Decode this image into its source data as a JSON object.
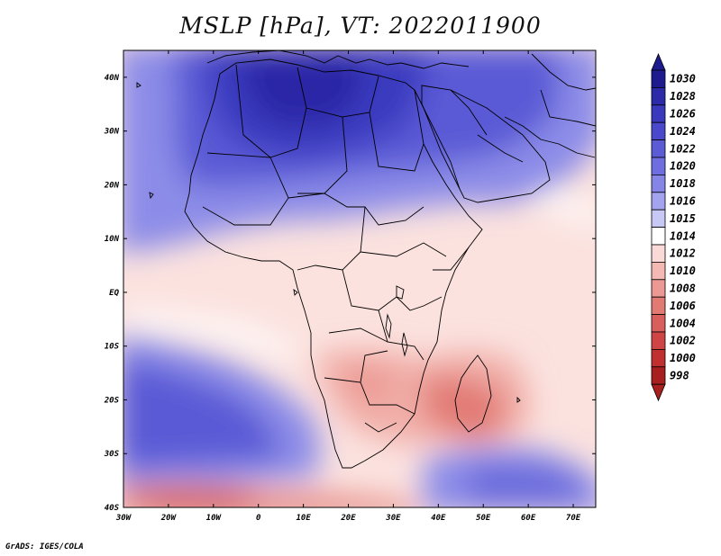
{
  "title": "MSLP [hPa], VT: 2022011900",
  "credit": "GrADS: IGES/COLA",
  "map": {
    "variable": "MSLP",
    "units": "hPa",
    "valid_time": "2022011900",
    "lon_range": [
      -30,
      75
    ],
    "lat_range": [
      -40,
      45
    ],
    "lon_labels": [
      "30W",
      "20W",
      "10W",
      "0",
      "10E",
      "20E",
      "30E",
      "40E",
      "50E",
      "60E",
      "70E"
    ],
    "lat_labels": [
      "40N",
      "30N",
      "20N",
      "10N",
      "EQ",
      "10S",
      "20S",
      "30S",
      "40S"
    ]
  },
  "legend": {
    "levels": [
      "1030",
      "1028",
      "1026",
      "1024",
      "1022",
      "1020",
      "1018",
      "1016",
      "1015",
      "1014",
      "1012",
      "1010",
      "1008",
      "1006",
      "1004",
      "1002",
      "1000",
      "998"
    ],
    "colors": [
      "#1e1b8f",
      "#2c2aa8",
      "#3a39bd",
      "#4a49cc",
      "#5b5bd6",
      "#6e6ee0",
      "#8585e8",
      "#a3a3ef",
      "#c8c8f6",
      "#ffffff",
      "#fbd9d7",
      "#f5b9b4",
      "#ec9993",
      "#e27a74",
      "#d95f5c",
      "#cf4545",
      "#c13030",
      "#a81f1f"
    ]
  }
}
